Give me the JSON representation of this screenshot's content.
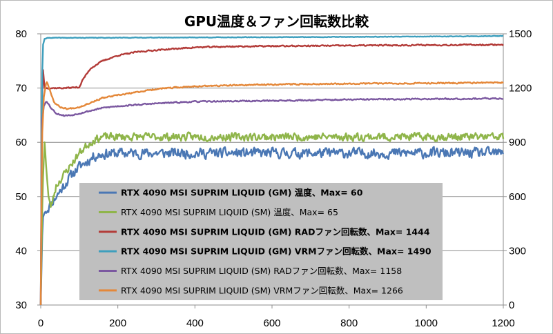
{
  "chart_data": {
    "type": "line",
    "title": "GPU温度＆ファン回転数比較",
    "grid": true,
    "legend_placement": "center-left",
    "x": {
      "ticks": [
        0,
        200,
        400,
        600,
        800,
        1000,
        1200
      ],
      "range": [
        0,
        1200
      ]
    },
    "y_left": {
      "ticks": [
        30,
        40,
        50,
        60,
        70,
        80
      ],
      "range": [
        30,
        80
      ]
    },
    "y_right": {
      "ticks": [
        0,
        300,
        600,
        900,
        1200,
        1500
      ],
      "range": [
        0,
        1500
      ]
    },
    "series": [
      {
        "name": "RTX 4090 MSI SUPRIM LIQUID (GM) 温度、Max= 60",
        "axis": "left",
        "color": "#4a77b4",
        "bold": true,
        "points": [
          [
            0,
            30
          ],
          [
            5,
            46
          ],
          [
            10,
            47
          ],
          [
            20,
            48
          ],
          [
            30,
            49
          ],
          [
            40,
            50
          ],
          [
            60,
            52
          ],
          [
            80,
            54
          ],
          [
            100,
            55.5
          ],
          [
            120,
            56.5
          ],
          [
            140,
            57.5
          ],
          [
            160,
            57.8
          ],
          [
            200,
            58
          ],
          [
            400,
            58
          ],
          [
            600,
            58
          ],
          [
            800,
            58
          ],
          [
            1000,
            58
          ],
          [
            1200,
            58
          ]
        ],
        "noise": 1.3,
        "seed": 11
      },
      {
        "name": "RTX 4090 MSI SUPRIM LIQUID (SM) 温度、Max= 65",
        "axis": "left",
        "color": "#8fb54a",
        "bold": false,
        "points": [
          [
            0,
            30
          ],
          [
            5,
            52
          ],
          [
            10,
            60
          ],
          [
            15,
            55
          ],
          [
            20,
            50
          ],
          [
            25,
            48
          ],
          [
            30,
            49
          ],
          [
            40,
            52
          ],
          [
            60,
            54
          ],
          [
            80,
            56
          ],
          [
            100,
            58
          ],
          [
            120,
            59.5
          ],
          [
            140,
            60.5
          ],
          [
            160,
            61
          ],
          [
            200,
            61
          ],
          [
            400,
            61
          ],
          [
            600,
            61
          ],
          [
            800,
            61
          ],
          [
            1000,
            61
          ],
          [
            1200,
            61
          ]
        ],
        "noise": 1.0,
        "seed": 23
      },
      {
        "name": "RTX 4090 MSI SUPRIM LIQUID (GM) RADファン回転数、Max= 1444",
        "axis": "right",
        "color": "#b33b38",
        "bold": true,
        "points": [
          [
            0,
            0
          ],
          [
            3,
            1100
          ],
          [
            6,
            1300
          ],
          [
            10,
            1200
          ],
          [
            20,
            1200
          ],
          [
            60,
            1200
          ],
          [
            100,
            1205
          ],
          [
            110,
            1250
          ],
          [
            130,
            1310
          ],
          [
            160,
            1350
          ],
          [
            200,
            1380
          ],
          [
            250,
            1400
          ],
          [
            300,
            1410
          ],
          [
            400,
            1425
          ],
          [
            500,
            1430
          ],
          [
            600,
            1432
          ],
          [
            800,
            1435
          ],
          [
            1000,
            1438
          ],
          [
            1200,
            1440
          ]
        ],
        "noise": 5,
        "seed": 37
      },
      {
        "name": "RTX 4090 MSI SUPRIM LIQUID (GM) VRMファン回転数、Max= 1490",
        "axis": "right",
        "color": "#3e9fbd",
        "bold": true,
        "points": [
          [
            0,
            0
          ],
          [
            3,
            1200
          ],
          [
            6,
            1440
          ],
          [
            10,
            1472
          ],
          [
            20,
            1478
          ],
          [
            100,
            1478
          ],
          [
            400,
            1480
          ],
          [
            700,
            1482
          ],
          [
            900,
            1484
          ],
          [
            1100,
            1486
          ],
          [
            1200,
            1488
          ]
        ],
        "noise": 2,
        "seed": 41
      },
      {
        "name": "RTX 4090 MSI SUPRIM LIQUID (SM) RADファン回転数、Max= 1158",
        "axis": "right",
        "color": "#7b58a0",
        "bold": false,
        "points": [
          [
            0,
            0
          ],
          [
            3,
            1000
          ],
          [
            8,
            1100
          ],
          [
            15,
            1130
          ],
          [
            25,
            1095
          ],
          [
            40,
            1060
          ],
          [
            60,
            1048
          ],
          [
            80,
            1050
          ],
          [
            100,
            1060
          ],
          [
            130,
            1075
          ],
          [
            160,
            1090
          ],
          [
            200,
            1100
          ],
          [
            300,
            1115
          ],
          [
            400,
            1125
          ],
          [
            600,
            1130
          ],
          [
            800,
            1136
          ],
          [
            1000,
            1140
          ],
          [
            1200,
            1142
          ]
        ],
        "noise": 5,
        "seed": 53
      },
      {
        "name": "RTX 4090 MSI SUPRIM LIQUID (SM) VRMファン回転数、Max= 1266",
        "axis": "right",
        "color": "#e4883a",
        "bold": false,
        "points": [
          [
            0,
            0
          ],
          [
            3,
            900
          ],
          [
            8,
            1150
          ],
          [
            15,
            1240
          ],
          [
            22,
            1200
          ],
          [
            35,
            1120
          ],
          [
            50,
            1095
          ],
          [
            70,
            1085
          ],
          [
            100,
            1095
          ],
          [
            130,
            1120
          ],
          [
            160,
            1145
          ],
          [
            200,
            1160
          ],
          [
            300,
            1195
          ],
          [
            400,
            1210
          ],
          [
            500,
            1215
          ],
          [
            600,
            1220
          ],
          [
            800,
            1225
          ],
          [
            1000,
            1227
          ],
          [
            1200,
            1230
          ]
        ],
        "noise": 5,
        "seed": 67
      }
    ]
  }
}
